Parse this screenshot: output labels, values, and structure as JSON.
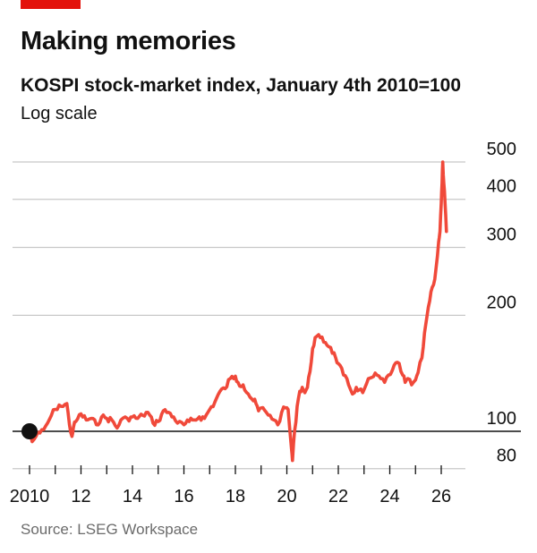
{
  "title": "Making memories",
  "subtitle": "KOSPI stock-market index, January 4th 2010=100",
  "note": "Log scale",
  "source": "Source: LSEG Workspace",
  "colors": {
    "accent": "#e3120b",
    "line": "#f0493a",
    "grid": "#c8c8c8",
    "baseline": "#111111",
    "marker": "#111111"
  },
  "chart_data": {
    "type": "line",
    "scale": "log",
    "ylim": [
      80,
      560
    ],
    "xlim": [
      2009.8,
      2026.6
    ],
    "y_ticks": [
      80,
      100,
      200,
      300,
      400,
      500
    ],
    "y_tick_labels": [
      "80",
      "100",
      "200",
      "300",
      "400",
      "500"
    ],
    "x_ticks": [
      2010,
      2011,
      2012,
      2013,
      2014,
      2015,
      2016,
      2017,
      2018,
      2019,
      2020,
      2021,
      2022,
      2023,
      2024,
      2025,
      2026
    ],
    "x_tick_labels": [
      {
        "x": 2010,
        "label": "2010"
      },
      {
        "x": 2012,
        "label": "12"
      },
      {
        "x": 2014,
        "label": "14"
      },
      {
        "x": 2016,
        "label": "16"
      },
      {
        "x": 2018,
        "label": "18"
      },
      {
        "x": 2020,
        "label": "20"
      },
      {
        "x": 2022,
        "label": "22"
      },
      {
        "x": 2024,
        "label": "24"
      },
      {
        "x": 2026,
        "label": "26"
      }
    ],
    "start_marker": {
      "x": 2010.0,
      "y": 100
    },
    "series": [
      {
        "x": [
          2010.0,
          2010.1,
          2010.25,
          2010.4,
          2010.55,
          2010.7,
          2010.85,
          2011.0,
          2011.15,
          2011.3,
          2011.45,
          2011.55,
          2011.65,
          2011.7,
          2011.8,
          2012.0,
          2012.2,
          2012.4,
          2012.6,
          2012.8,
          2013.0,
          2013.2,
          2013.4,
          2013.55,
          2013.8,
          2014.0,
          2014.2,
          2014.4,
          2014.6,
          2014.8,
          2015.0,
          2015.2,
          2015.4,
          2015.6,
          2015.75,
          2016.0,
          2016.2,
          2016.4,
          2016.6,
          2016.8,
          2017.0,
          2017.2,
          2017.4,
          2017.6,
          2017.8,
          2018.0,
          2018.1,
          2018.3,
          2018.5,
          2018.7,
          2018.8,
          2018.9,
          2019.0,
          2019.2,
          2019.35,
          2019.5,
          2019.65,
          2019.8,
          2019.95,
          2020.05,
          2020.18,
          2020.22,
          2020.3,
          2020.4,
          2020.5,
          2020.6,
          2020.7,
          2020.8,
          2020.9,
          2021.0,
          2021.1,
          2021.3,
          2021.5,
          2021.7,
          2021.9,
          2022.0,
          2022.2,
          2022.4,
          2022.55,
          2022.7,
          2022.8,
          2022.95,
          2023.1,
          2023.3,
          2023.5,
          2023.65,
          2023.8,
          2023.95,
          2024.1,
          2024.3,
          2024.5,
          2024.6,
          2024.7,
          2024.85,
          2025.0,
          2025.1,
          2025.25,
          2025.35,
          2025.5,
          2025.6,
          2025.7,
          2025.8,
          2025.9,
          2025.95,
          2026.0,
          2026.03,
          2026.06,
          2026.1,
          2026.15,
          2026.2
        ],
        "y": [
          100,
          94,
          97,
          99,
          101,
          105,
          110,
          114,
          117,
          116,
          118,
          104,
          97,
          102,
          106,
          111,
          107,
          108,
          104,
          109,
          108,
          107,
          102,
          107,
          108,
          109,
          108,
          110,
          112,
          105,
          106,
          113,
          112,
          109,
          105,
          104,
          106,
          107,
          109,
          108,
          114,
          119,
          127,
          129,
          137,
          139,
          134,
          132,
          125,
          120,
          118,
          113,
          115,
          112,
          110,
          107,
          104,
          112,
          115,
          114,
          90,
          84,
          100,
          116,
          127,
          130,
          126,
          130,
          143,
          164,
          175,
          175,
          170,
          165,
          155,
          150,
          140,
          132,
          125,
          130,
          128,
          126,
          133,
          138,
          140,
          137,
          134,
          140,
          144,
          151,
          140,
          134,
          137,
          132,
          136,
          142,
          155,
          180,
          210,
          230,
          240,
          265,
          310,
          330,
          390,
          440,
          500,
          440,
          390,
          330
        ]
      }
    ]
  }
}
